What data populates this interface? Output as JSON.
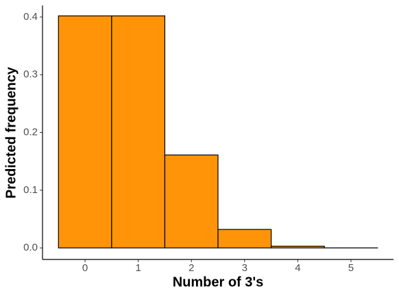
{
  "chart_data": {
    "type": "histogram",
    "x_label": "Number of 3's",
    "y_label": "Predicted frequency",
    "x": [
      0,
      1,
      2,
      3,
      4,
      5
    ],
    "values": [
      0.402,
      0.402,
      0.161,
      0.032,
      0.003,
      0.0001
    ],
    "color": "#ff9408",
    "xlim": [
      -0.8,
      5.8
    ],
    "xticks": [
      0,
      1,
      2,
      3,
      4,
      5
    ],
    "ylim": [
      -0.02,
      0.42
    ],
    "yticks": [
      {
        "value": 0,
        "label": "0.0"
      },
      {
        "value": 0.1,
        "label": "0.1"
      },
      {
        "value": 0.2,
        "label": "0.2"
      },
      {
        "value": 0.3,
        "label": "0.3"
      },
      {
        "value": 0.4,
        "label": "0.4"
      }
    ],
    "grid": false
  }
}
